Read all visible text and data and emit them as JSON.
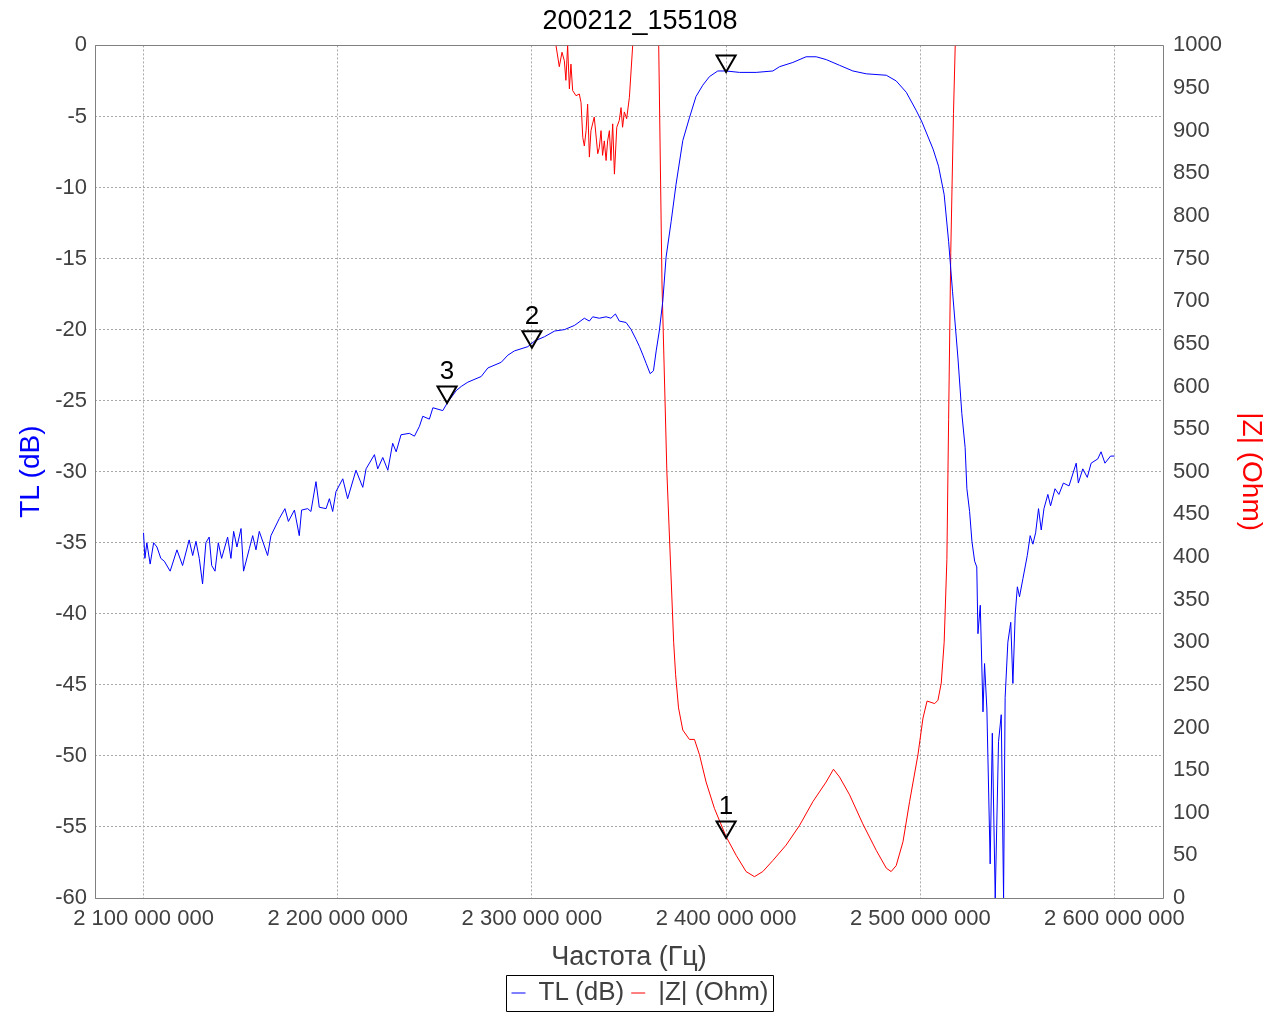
{
  "chart_data": {
    "type": "line",
    "title": "200212_155108",
    "xlabel": "Частота (Гц)",
    "ylabel": "TL (dB)",
    "y2label": "|Z| (Ohm)",
    "xlim": [
      2075000000,
      2625000000
    ],
    "xticks": [
      {
        "value": 2100000000,
        "label": "2 100 000 000"
      },
      {
        "value": 2200000000,
        "label": "2 200 000 000"
      },
      {
        "value": 2300000000,
        "label": "2 300 000 000"
      },
      {
        "value": 2400000000,
        "label": "2 400 000 000"
      },
      {
        "value": 2500000000,
        "label": "2 500 000 000"
      },
      {
        "value": 2600000000,
        "label": "2 600 000 000"
      }
    ],
    "ylim": [
      -60,
      0
    ],
    "yticks": [
      -60,
      -55,
      -50,
      -45,
      -40,
      -35,
      -30,
      -25,
      -20,
      -15,
      -10,
      -5,
      0
    ],
    "y2lim": [
      0,
      1000
    ],
    "y2ticks": [
      0,
      50,
      100,
      150,
      200,
      250,
      300,
      350,
      400,
      450,
      500,
      550,
      600,
      650,
      700,
      750,
      800,
      850,
      900,
      950,
      1000
    ],
    "grid": true,
    "legend": "bottom",
    "series": [
      {
        "name": "TL (dB)",
        "color": "#0000ff",
        "x": [
          2100000000,
          2100700000,
          2101700000,
          2103400000,
          2105200000,
          2106900000,
          2108900000,
          2110700000,
          2113700000,
          2117200000,
          2120100000,
          2123500000,
          2125300000,
          2127000000,
          2128700000,
          2130400000,
          2132100000,
          2133800000,
          2135100000,
          2136800000,
          2138500000,
          2140200000,
          2143300000,
          2145000000,
          2146400000,
          2148100000,
          2150200000,
          2151500000,
          2154500000,
          2156200000,
          2157900000,
          2159600000,
          2163900000,
          2165600000,
          2169900000,
          2172800000,
          2174600000,
          2177700000,
          2180200000,
          2181400000,
          2184500000,
          2186200000,
          2188800000,
          2190500000,
          2194000000,
          2195700000,
          2197400000,
          2199100000,
          2202600000,
          2205100000,
          2209400000,
          2212900000,
          2214600000,
          2218900000,
          2220600000,
          2223200000,
          2225800000,
          2228300000,
          2230100000,
          2232600000,
          2236900000,
          2239500000,
          2242100000,
          2243800000,
          2247200000,
          2249000000,
          2254100000,
          2256700000,
          2261000000,
          2263600000,
          2267000000,
          2273900000,
          2277300000,
          2284200000,
          2287600000,
          2291000000,
          2297900000,
          2301400000,
          2306500000,
          2311700000,
          2316800000,
          2322000000,
          2327000000,
          2329600000,
          2331300000,
          2334700000,
          2338200000,
          2340700000,
          2343000000,
          2345000000,
          2348500000,
          2351100000,
          2353700000,
          2355400000,
          2357200000,
          2358900000,
          2360900000,
          2362600000,
          2364000000,
          2365600000,
          2367400000,
          2369100000,
          2371700000,
          2374200000,
          2377700000,
          2381100000,
          2384500000,
          2388000000,
          2391400000,
          2395700000,
          2400000000,
          2406900000,
          2415500000,
          2424100000,
          2427500000,
          2434400000,
          2441200000,
          2446400000,
          2451600000,
          2458400000,
          2465300000,
          2472200000,
          2482500000,
          2487600000,
          2492800000,
          2498000000,
          2500900000,
          2506600000,
          2509400000,
          2512300000,
          2514600000,
          2516600000,
          2519400000,
          2521400000,
          2523100000,
          2524000000,
          2525400000,
          2526600000,
          2528000000,
          2529100000,
          2529700000,
          2530900000,
          2532300000,
          2533100000,
          2534300000,
          2536000000,
          2537100000,
          2538600000,
          2540300000,
          2541700000,
          2542900000,
          2543700000,
          2545100000,
          2546600000,
          2547700000,
          2548900000,
          2550000000,
          2551100000,
          2552900000,
          2555100000,
          2556600000,
          2558000000,
          2559400000,
          2560900000,
          2562300000,
          2563700000,
          2565700000,
          2567100000,
          2569400000,
          2571400000,
          2573700000,
          2576600000,
          2580300000,
          2581400000,
          2583700000,
          2586000000,
          2588000000,
          2591400000,
          2593100000,
          2595100000,
          2598000000,
          2600000000
        ],
        "values": [
          -34.3,
          -36.1,
          -35.0,
          -36.5,
          -35.0,
          -35.3,
          -36.1,
          -36.3,
          -37.0,
          -35.5,
          -36.6,
          -34.8,
          -35.9,
          -34.9,
          -36.1,
          -37.9,
          -35.0,
          -34.6,
          -36.6,
          -37.0,
          -35.0,
          -36.1,
          -34.6,
          -36.1,
          -34.2,
          -35.3,
          -34.0,
          -37.0,
          -35.4,
          -34.5,
          -35.5,
          -34.2,
          -35.9,
          -34.5,
          -33.3,
          -32.6,
          -33.5,
          -32.7,
          -34.5,
          -32.7,
          -32.6,
          -32.8,
          -30.7,
          -32.5,
          -32.6,
          -31.9,
          -32.8,
          -31.4,
          -30.5,
          -31.9,
          -29.9,
          -31.1,
          -29.8,
          -28.8,
          -29.8,
          -29.0,
          -29.9,
          -28.0,
          -28.6,
          -27.4,
          -27.3,
          -27.5,
          -26.8,
          -26.1,
          -26.3,
          -25.5,
          -25.7,
          -25.1,
          -24.3,
          -24.0,
          -23.7,
          -23.3,
          -22.7,
          -22.3,
          -21.8,
          -21.5,
          -21.2,
          -20.8,
          -20.5,
          -20.1,
          -20.0,
          -19.7,
          -19.2,
          -19.4,
          -19.1,
          -19.2,
          -19.1,
          -19.2,
          -18.9,
          -19.4,
          -19.5,
          -20.0,
          -20.7,
          -21.2,
          -21.8,
          -22.4,
          -23.1,
          -22.9,
          -21.5,
          -20.1,
          -18.0,
          -14.9,
          -12.4,
          -9.8,
          -6.7,
          -5.1,
          -3.6,
          -2.8,
          -2.2,
          -1.8,
          -1.8,
          -1.9,
          -1.9,
          -1.8,
          -1.5,
          -1.2,
          -0.8,
          -0.8,
          -1.0,
          -1.4,
          -1.8,
          -2.0,
          -2.1,
          -2.5,
          -3.3,
          -4.6,
          -5.4,
          -7.3,
          -8.5,
          -10.5,
          -13.8,
          -17.3,
          -22.0,
          -25.9,
          -28.3,
          -31.2,
          -32.8,
          -34.9,
          -36.3,
          -36.7,
          -41.4,
          -39.4,
          -46.9,
          -43.5,
          -46.7,
          -57.6,
          -48.4,
          -60,
          -49.0,
          -47.1,
          -60,
          -45.9,
          -42.0,
          -40.6,
          -44.9,
          -40.0,
          -38.1,
          -38.8,
          -37.5,
          -35.9,
          -34.5,
          -35.1,
          -34.3,
          -32.6,
          -34.1,
          -32.6,
          -31.6,
          -32.4,
          -31.2,
          -31.6,
          -30.8,
          -31.0,
          -29.4,
          -30.8,
          -29.8,
          -30.4,
          -29.4,
          -29.1,
          -28.6,
          -29.4,
          -28.9,
          -28.9
        ]
      },
      {
        "name": "|Z| (Ohm)",
        "color": "#ff0000",
        "axis": "y2",
        "x": [
          2312400000,
          2314100000,
          2315500000,
          2316700000,
          2317500000,
          2318400000,
          2319300000,
          2320100000,
          2321000000,
          2322700000,
          2324400000,
          2325300000,
          2326200000,
          2327000000,
          2327900000,
          2328700000,
          2329600000,
          2330400000,
          2332100000,
          2333900000,
          2334700000,
          2335600000,
          2336400000,
          2337300000,
          2338200000,
          2339000000,
          2339900000,
          2340700000,
          2341600000,
          2342500000,
          2343700000,
          2345000000,
          2345900000,
          2346700000,
          2347600000,
          2348800000,
          2350200000,
          2351900000,
          2358000000,
          2365300000,
          2367000000,
          2369500000,
          2373000000,
          2374000000,
          2375500000,
          2377700000,
          2381100000,
          2383700000,
          2386300000,
          2389700000,
          2394000000,
          2400000000,
          2405200000,
          2410300000,
          2414600000,
          2418900000,
          2424100000,
          2430900000,
          2437800000,
          2444700000,
          2451500000,
          2455300000,
          2458400000,
          2463600000,
          2470400000,
          2477300000,
          2482500000,
          2485000000,
          2487600000,
          2491100000,
          2494500000,
          2498800000,
          2501400000,
          2503500000,
          2507400000,
          2509100000,
          2510800000,
          2512300000,
          2513700000,
          2514600000,
          2515700000,
          2517100000,
          2518000000
        ],
        "values": [
          1000,
          975,
          992,
          982,
          959,
          1000,
          949,
          978,
          947,
          941,
          943,
          933,
          892,
          882,
          900,
          931,
          869,
          900,
          916,
          873,
          880,
          900,
          871,
          888,
          865,
          888,
          900,
          865,
          908,
          849,
          904,
          912,
          927,
          904,
          922,
          914,
          939,
          1000,
          null,
          1000,
          720,
          500,
          300,
          262,
          223,
          197,
          186,
          186,
          168,
          136,
          105,
          72,
          50,
          31,
          25,
          31,
          44,
          62,
          85,
          113,
          136,
          151,
          142,
          121,
          87,
          56,
          35,
          31,
          38,
          66,
          113,
          168,
          211,
          231,
          228,
          232,
          252,
          300,
          397,
          561,
          757,
          920,
          1000
        ]
      },
      {
        "type": "scatter",
        "marker": "triangle",
        "color": "#000000",
        "x": [
          2400000000,
          2300000000,
          2256300000,
          2400000000
        ],
        "values": [
          -55.0,
          -20.5,
          -24.4,
          -1.1
        ]
      }
    ],
    "annotations": [
      {
        "text": "1",
        "x": 2400000000,
        "y": -55.0
      },
      {
        "text": "2",
        "x": 2300000000,
        "y": -20.5
      },
      {
        "text": "3",
        "x": 2256300000,
        "y": -24.4
      }
    ]
  }
}
